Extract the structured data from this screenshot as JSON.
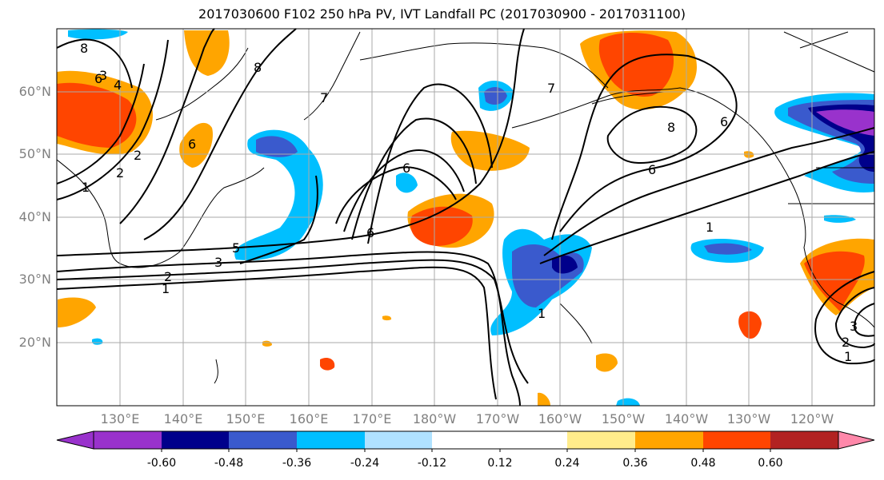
{
  "title": "2017030600 F102 250 hPa PV, IVT Landfall PC (2017030900 - 2017031100)",
  "lat_labels": [
    "60°N",
    "50°N",
    "40°N",
    "30°N",
    "20°N"
  ],
  "lon_labels": [
    "130°E",
    "140°E",
    "150°E",
    "160°E",
    "170°E",
    "180°W",
    "170°W",
    "160°W",
    "150°W",
    "140°W",
    "130°W",
    "120°W"
  ],
  "colorbar": {
    "colors": [
      "#9932CC",
      "#00008B",
      "#3A5ACD",
      "#00BFFF",
      "#B0E2FF",
      "#FFFFFF",
      "#FFFFFF",
      "#FFEC8B",
      "#FFA500",
      "#FF4500",
      "#B22222",
      "#FF88AA"
    ],
    "labels": [
      "-0.60",
      "-0.48",
      "-0.36",
      "-0.24",
      "-0.12",
      "0.12",
      "0.24",
      "0.36",
      "0.48",
      "0.60"
    ]
  },
  "contour_labels": [
    "8",
    "6",
    "4",
    "2",
    "1",
    "6",
    "8",
    "7",
    "6",
    "5",
    "3",
    "2",
    "1",
    "1",
    "3",
    "2",
    "1",
    "6",
    "8",
    "7",
    "6",
    "1",
    "2",
    "3",
    "6"
  ],
  "map": {
    "extent": {
      "lon_min": 120,
      "lon_max": 250,
      "lat_min": 10,
      "lat_max": 70
    },
    "shading_field": "IVT Landfall PC",
    "contour_field": "250 hPa PV"
  }
}
